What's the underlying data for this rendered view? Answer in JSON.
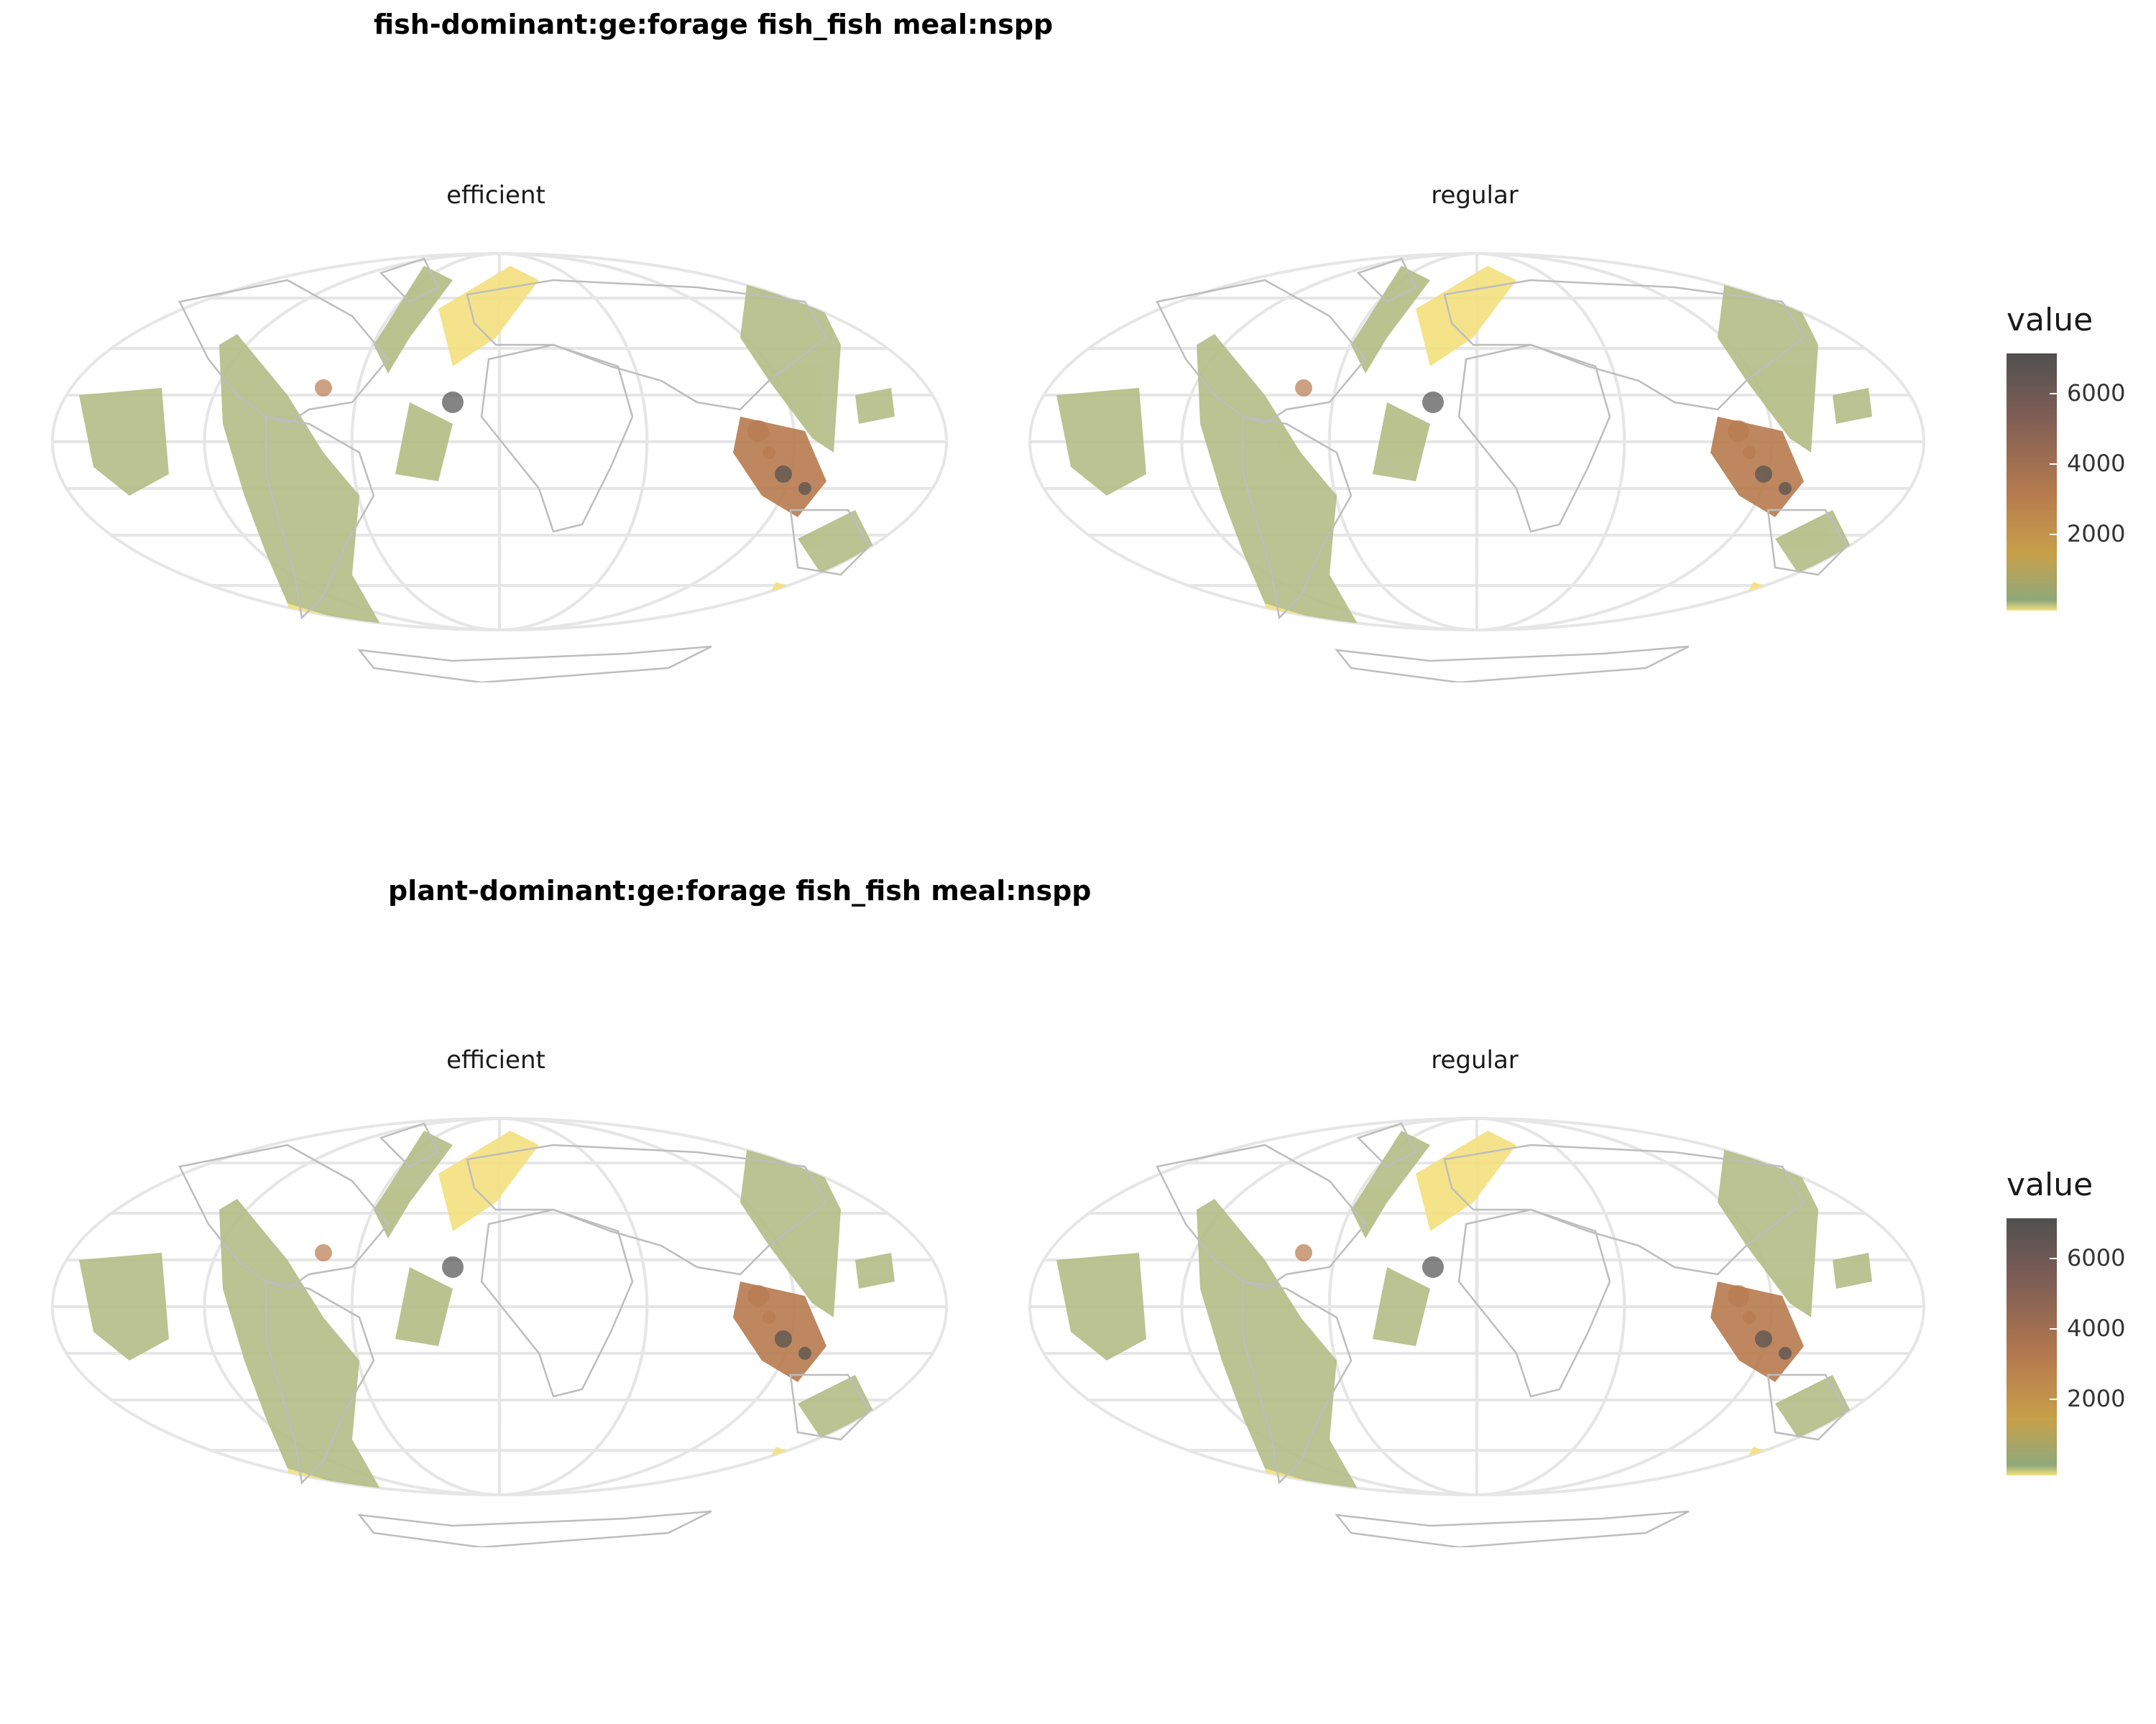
{
  "sections": [
    {
      "title": "fish-dominant:ge:forage fish_fish meal:nspp",
      "panels": [
        {
          "label": "efficient"
        },
        {
          "label": "regular"
        }
      ],
      "legend": {
        "title": "value",
        "ticks": [
          "6000",
          "4000",
          "2000"
        ]
      }
    },
    {
      "title": "plant-dominant:ge:forage fish_fish meal:nspp",
      "panels": [
        {
          "label": "efficient"
        },
        {
          "label": "regular"
        }
      ],
      "legend": {
        "title": "value",
        "ticks": [
          "6000",
          "4000",
          "2000"
        ]
      }
    }
  ],
  "legend_scale": {
    "min": 0,
    "max": 7300,
    "ticks": [
      6000,
      4000,
      2000
    ]
  },
  "colors": {
    "low": "#f4e07e",
    "ocean": "#b3bd85",
    "mid": "#c7a04a",
    "high": "#b77b4e",
    "max": "#505050",
    "graticule": "#e6e6e6",
    "border": "#bdbdbd"
  }
}
